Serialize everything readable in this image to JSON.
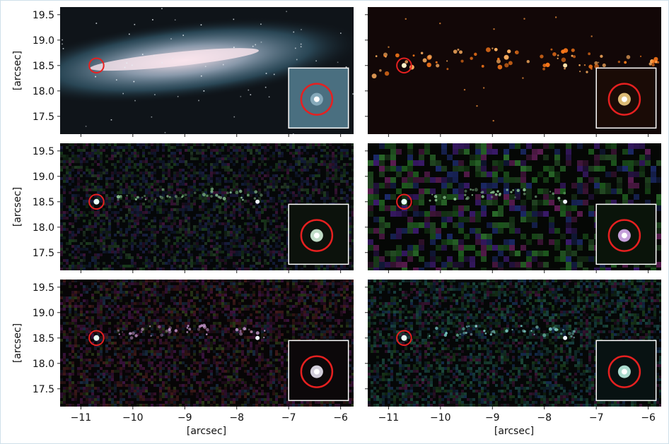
{
  "figure": {
    "y_axis_label": "[arcsec]",
    "x_axis_label": "[arcsec]"
  },
  "chart_data": {
    "type": "image-grid",
    "rows": 3,
    "cols": 2,
    "xlim": [
      -11.4,
      -5.75
    ],
    "ylim": [
      17.15,
      19.65
    ],
    "xticks": [
      -11,
      -10,
      -9,
      -8,
      -7,
      -6
    ],
    "xtick_labels": [
      "−11",
      "−10",
      "−9",
      "−8",
      "−7",
      "−6"
    ],
    "yticks": [
      17.5,
      18.0,
      18.5,
      19.0,
      19.5
    ],
    "ytick_labels": [
      "17.5",
      "18.0",
      "18.5",
      "19.0",
      "19.5"
    ],
    "xlabel": "[arcsec]",
    "ylabel": "[arcsec]",
    "marker": {
      "x": -10.7,
      "y": 18.5,
      "radius_arcsec": 0.14,
      "color": "#e62020"
    },
    "inset": {
      "x_range": [
        -7.0,
        -5.85
      ],
      "y_range": [
        17.27,
        18.45
      ],
      "border_color": "#ffffff"
    },
    "panels": [
      {
        "id": "top-left",
        "style": "smooth-galaxy",
        "background": "#0f1419"
      },
      {
        "id": "top-right",
        "style": "hot-clumps",
        "background": "#120707"
      },
      {
        "id": "middle-left",
        "style": "noise-fine",
        "background": "#050708"
      },
      {
        "id": "middle-right",
        "style": "noise-coarse",
        "background": "#050705"
      },
      {
        "id": "bottom-left",
        "style": "noise-magenta",
        "background": "#070506"
      },
      {
        "id": "bottom-right",
        "style": "noise-cyan",
        "background": "#050707"
      }
    ]
  }
}
